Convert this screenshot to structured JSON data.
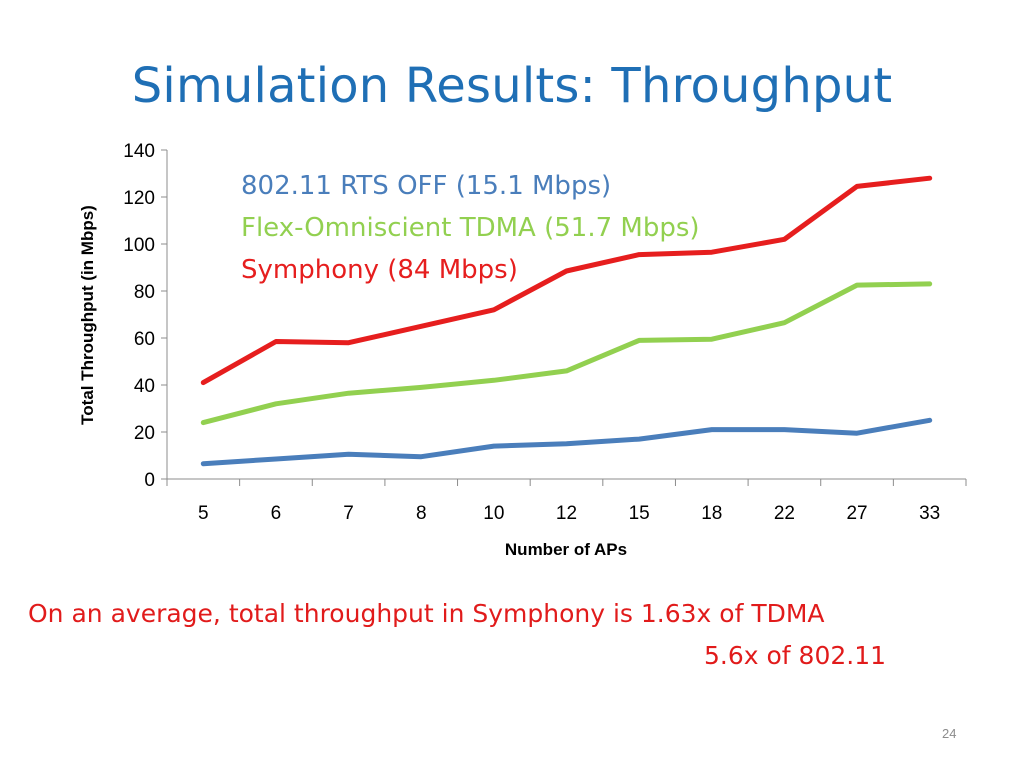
{
  "slide": {
    "title": "Simulation Results: Throughput",
    "slide_number": "24",
    "note_line_1": "On an average, total throughput in Symphony is  1.63x of TDMA",
    "note_line_2": "5.6x of  802.11"
  },
  "chart_data": {
    "type": "line",
    "xlabel": "Number of APs",
    "ylabel": "Total Throughput (in Mbps)",
    "categories": [
      "5",
      "6",
      "7",
      "8",
      "10",
      "12",
      "15",
      "18",
      "22",
      "27",
      "33"
    ],
    "ylim": [
      0,
      140
    ],
    "yticks": [
      0,
      20,
      40,
      60,
      80,
      100,
      120,
      140
    ],
    "grid": false,
    "legend_placement": "top-left inside plot",
    "series": [
      {
        "name": "802.11 RTS OFF (15.1 Mbps)",
        "color": "#4a7ebb",
        "values": [
          6.5,
          8.5,
          10.5,
          9.5,
          14,
          15,
          17,
          21,
          21,
          19.5,
          25
        ]
      },
      {
        "name": "Flex-Omniscient TDMA (51.7 Mbps)",
        "color": "#92d050",
        "values": [
          24,
          32,
          36.5,
          39,
          42,
          46,
          59,
          59.5,
          66.5,
          82.5,
          83
        ]
      },
      {
        "name": "Symphony (84 Mbps)",
        "color": "#e61e1e",
        "values": [
          41,
          58.5,
          58,
          65,
          72,
          88.5,
          95.5,
          96.5,
          102,
          124.5,
          128
        ]
      }
    ]
  }
}
